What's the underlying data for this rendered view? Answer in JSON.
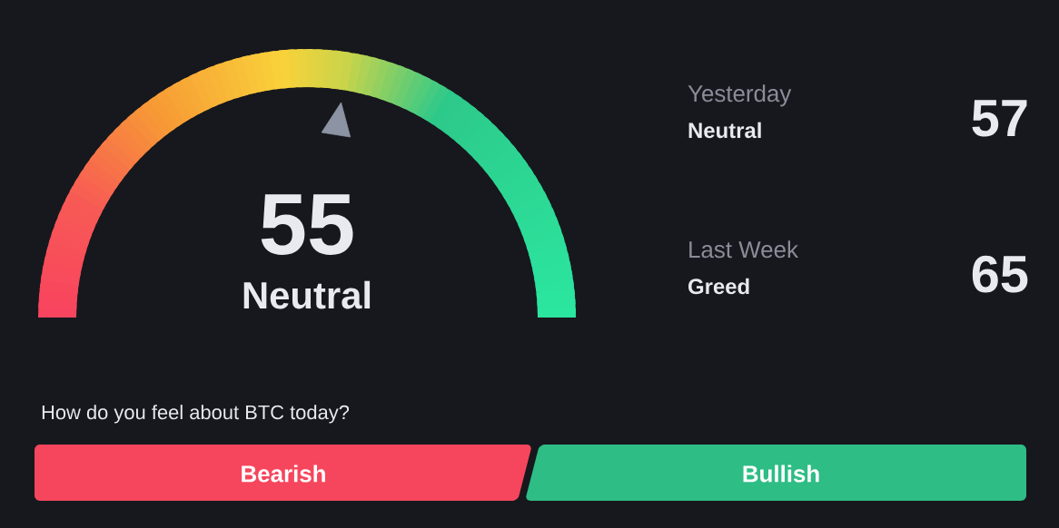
{
  "chart_data": {
    "type": "other",
    "categories": [
      null,
      "Yesterday",
      "Last Week"
    ],
    "values": [
      55,
      57,
      65
    ],
    "value_labels": [
      "55",
      "57",
      "65"
    ],
    "annotations": [
      "Neutral",
      "Neutral",
      "Greed",
      "How do you feel about BTC today?",
      "Bearish",
      "Bullish"
    ]
  }
}
